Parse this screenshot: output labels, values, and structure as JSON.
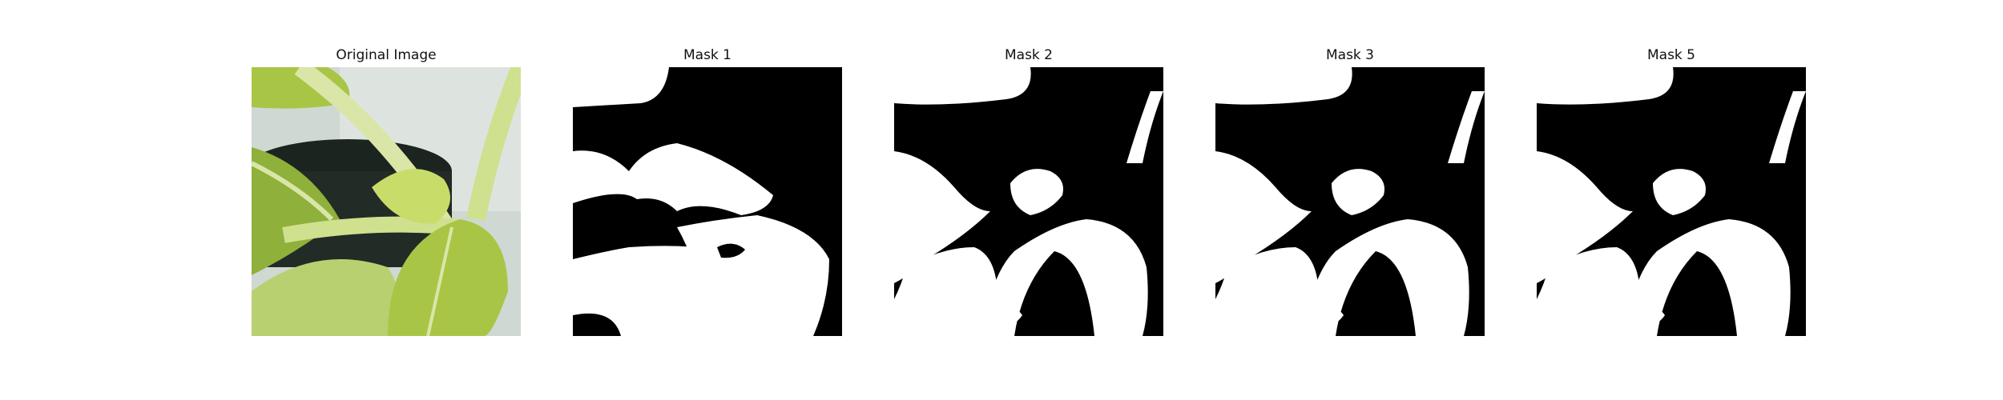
{
  "panels": [
    {
      "title": "Original Image",
      "kind": "photo"
    },
    {
      "title": "Mask 1",
      "kind": "mask"
    },
    {
      "title": "Mask 2",
      "kind": "mask"
    },
    {
      "title": "Mask 3",
      "kind": "mask"
    },
    {
      "title": "Mask 5",
      "kind": "mask"
    }
  ],
  "colors": {
    "mask_background": "#000000",
    "mask_foreground": "#ffffff",
    "leaf_light": "#c8dc6a",
    "leaf_mid": "#a9c545",
    "leaf_dark": "#6d8a2a",
    "stem": "#d9e6a8",
    "wall": "#d4dcd8",
    "pot": "#1c2420"
  }
}
